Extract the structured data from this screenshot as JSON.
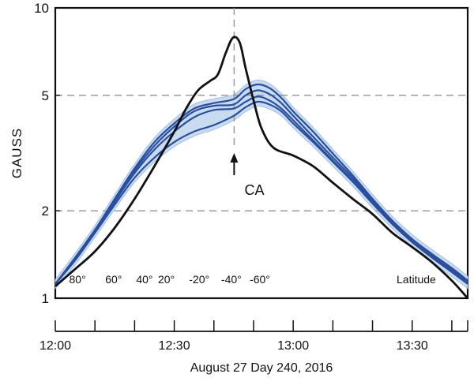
{
  "chart_data": {
    "type": "line",
    "yscale": "log",
    "ylabel": "GAUSS",
    "xlabel": "August 27 Day 240, 2016",
    "y_ticks": [
      "1",
      "2",
      "5",
      "10"
    ],
    "y_tick_values": [
      1,
      2,
      5,
      10
    ],
    "ylim": [
      1,
      10
    ],
    "x_ticks": [
      "12:00",
      "12:30",
      "13:00",
      "13:30"
    ],
    "x_tick_minutes": [
      0,
      30,
      60,
      90
    ],
    "xlim_minutes": [
      0,
      104
    ],
    "dashed_gridlines_y": [
      2,
      5
    ],
    "latitude_labels": [
      "80°",
      "60°",
      "40°",
      "20°",
      "-20°",
      "-40°",
      "-60°"
    ],
    "latitude_minutes": [
      5.6,
      14.7,
      22.5,
      28.0,
      36.3,
      44.4,
      51.6
    ],
    "latitude_axis_title": "Latitude",
    "annotation": {
      "text": "CA",
      "x_minutes": 45.1
    },
    "colors": {
      "observed": "#111111",
      "model": "#2a4fa0",
      "band": "#c9dcef",
      "grid": "#9a9a9a"
    },
    "series": [
      {
        "name": "",
        "role": "observed",
        "points": [
          [
            0,
            1.1
          ],
          [
            5,
            1.26
          ],
          [
            10,
            1.45
          ],
          [
            15,
            1.75
          ],
          [
            20,
            2.2
          ],
          [
            25,
            2.85
          ],
          [
            30,
            3.75
          ],
          [
            33,
            4.5
          ],
          [
            36,
            5.2
          ],
          [
            39,
            5.6
          ],
          [
            41,
            5.9
          ],
          [
            43,
            7.0
          ],
          [
            44.8,
            7.9
          ],
          [
            46.5,
            7.6
          ],
          [
            48,
            6.2
          ],
          [
            50,
            4.8
          ],
          [
            52,
            3.85
          ],
          [
            55,
            3.3
          ],
          [
            60,
            3.1
          ],
          [
            65,
            2.85
          ],
          [
            70,
            2.5
          ],
          [
            75,
            2.2
          ],
          [
            80,
            1.95
          ],
          [
            85,
            1.68
          ],
          [
            90,
            1.5
          ],
          [
            95,
            1.33
          ],
          [
            100,
            1.15
          ],
          [
            104,
            1.0
          ]
        ]
      },
      {
        "name": "",
        "role": "model",
        "points": [
          [
            0,
            1.12
          ],
          [
            5,
            1.38
          ],
          [
            10,
            1.72
          ],
          [
            15,
            2.2
          ],
          [
            20,
            2.8
          ],
          [
            25,
            3.45
          ],
          [
            30,
            4.0
          ],
          [
            35,
            4.5
          ],
          [
            40,
            4.7
          ],
          [
            45,
            4.85
          ],
          [
            48,
            5.25
          ],
          [
            51,
            5.45
          ],
          [
            54,
            5.3
          ],
          [
            57,
            4.9
          ],
          [
            60,
            4.4
          ],
          [
            65,
            3.75
          ],
          [
            70,
            3.15
          ],
          [
            75,
            2.65
          ],
          [
            80,
            2.2
          ],
          [
            85,
            1.85
          ],
          [
            90,
            1.6
          ],
          [
            95,
            1.42
          ],
          [
            100,
            1.27
          ],
          [
            104,
            1.15
          ]
        ]
      },
      {
        "name": "",
        "role": "model",
        "points": [
          [
            0,
            1.12
          ],
          [
            5,
            1.37
          ],
          [
            10,
            1.71
          ],
          [
            15,
            2.18
          ],
          [
            20,
            2.75
          ],
          [
            25,
            3.35
          ],
          [
            30,
            3.9
          ],
          [
            35,
            4.4
          ],
          [
            40,
            4.6
          ],
          [
            45,
            4.65
          ],
          [
            48,
            5.0
          ],
          [
            51,
            5.2
          ],
          [
            54,
            5.05
          ],
          [
            57,
            4.7
          ],
          [
            60,
            4.25
          ],
          [
            65,
            3.6
          ],
          [
            70,
            3.05
          ],
          [
            75,
            2.6
          ],
          [
            80,
            2.17
          ],
          [
            85,
            1.83
          ],
          [
            90,
            1.58
          ],
          [
            95,
            1.4
          ],
          [
            100,
            1.25
          ],
          [
            104,
            1.14
          ]
        ]
      },
      {
        "name": "",
        "role": "model",
        "points": [
          [
            0,
            1.12
          ],
          [
            5,
            1.36
          ],
          [
            10,
            1.7
          ],
          [
            15,
            2.15
          ],
          [
            20,
            2.7
          ],
          [
            25,
            3.25
          ],
          [
            30,
            3.75
          ],
          [
            35,
            4.2
          ],
          [
            40,
            4.45
          ],
          [
            45,
            4.5
          ],
          [
            48,
            4.75
          ],
          [
            51,
            4.95
          ],
          [
            54,
            4.8
          ],
          [
            57,
            4.5
          ],
          [
            60,
            4.1
          ],
          [
            65,
            3.5
          ],
          [
            70,
            2.98
          ],
          [
            75,
            2.55
          ],
          [
            80,
            2.14
          ],
          [
            85,
            1.81
          ],
          [
            90,
            1.57
          ],
          [
            95,
            1.39
          ],
          [
            100,
            1.24
          ],
          [
            104,
            1.13
          ]
        ]
      },
      {
        "name": "",
        "role": "model",
        "points": [
          [
            0,
            1.12
          ],
          [
            5,
            1.35
          ],
          [
            10,
            1.68
          ],
          [
            15,
            2.1
          ],
          [
            20,
            2.6
          ],
          [
            25,
            3.05
          ],
          [
            30,
            3.45
          ],
          [
            35,
            3.75
          ],
          [
            40,
            3.95
          ],
          [
            45,
            4.25
          ],
          [
            48,
            4.55
          ],
          [
            51,
            4.75
          ],
          [
            54,
            4.65
          ],
          [
            57,
            4.4
          ],
          [
            60,
            4.0
          ],
          [
            65,
            3.45
          ],
          [
            70,
            2.95
          ],
          [
            75,
            2.52
          ],
          [
            80,
            2.12
          ],
          [
            85,
            1.8
          ],
          [
            90,
            1.56
          ],
          [
            95,
            1.38
          ],
          [
            100,
            1.23
          ],
          [
            104,
            1.12
          ]
        ]
      }
    ]
  }
}
